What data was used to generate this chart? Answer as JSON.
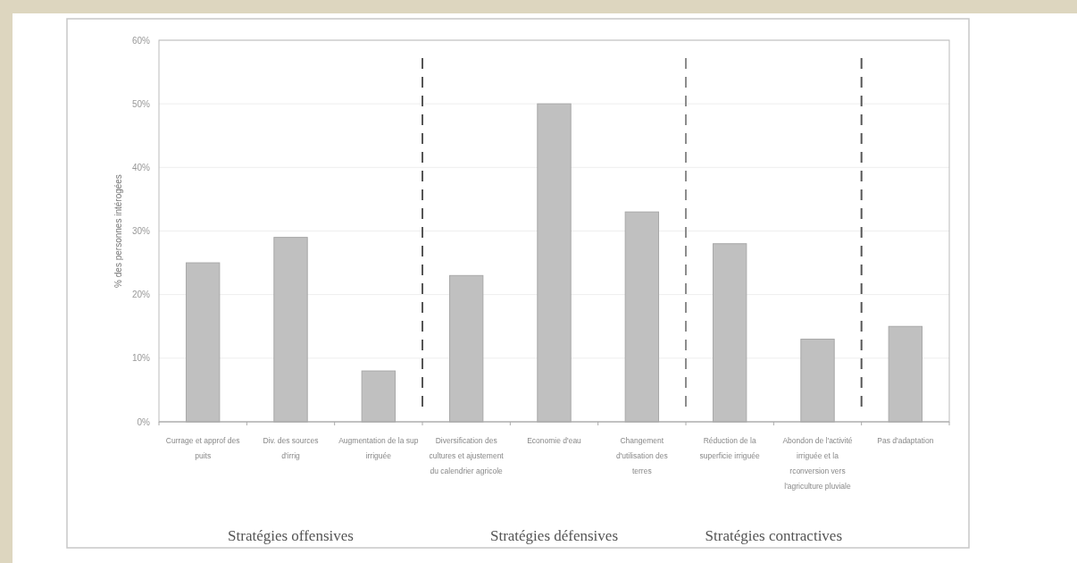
{
  "chart_data": {
    "type": "bar",
    "ylabel": "% des personnes intérogées",
    "categories": [
      "Currage et approf des puits",
      "Div. des sources d'irrig",
      "Augmentation  de la sup irriguée",
      "Diversification des cultures et ajustement du calendrier agricole",
      "Economie  d'eau",
      "Changement d'utilisation des terres",
      "Réduction de la superficie irriguée",
      "Abondon de l'activité irriguée et la rconversion vers l'agriculture pluviale",
      "Pas d'adaptation"
    ],
    "values": [
      25,
      29,
      8,
      23,
      50,
      33,
      28,
      13,
      15
    ],
    "color": "#c0c0c0",
    "ylim": [
      0,
      60
    ],
    "yticks": [
      {
        "value": 0,
        "label": "0%"
      },
      {
        "value": 10,
        "label": "10%"
      },
      {
        "value": 20,
        "label": "20%"
      },
      {
        "value": 30,
        "label": "30%"
      },
      {
        "value": 40,
        "label": "40%"
      },
      {
        "value": 50,
        "label": "50%"
      },
      {
        "value": 60,
        "label": "60%"
      }
    ],
    "grid": "y",
    "annotations": [
      "Stratégies offensives",
      "Stratégies défensives",
      "Stratégies contractives"
    ]
  }
}
